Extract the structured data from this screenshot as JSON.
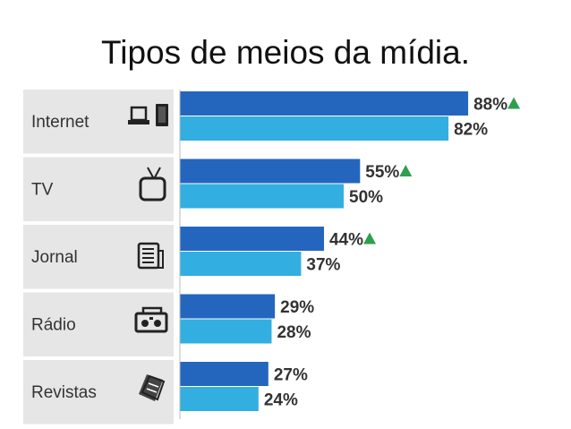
{
  "slide": {
    "title": "Tipos de meios da mídia."
  },
  "colors": {
    "series_dark": "#2466bd",
    "series_light": "#33aee0",
    "increase_marker": "#2e9e4f",
    "panel_bg": "#e6e6e6"
  },
  "chart_data": {
    "type": "bar",
    "orientation": "horizontal",
    "categories": [
      "Internet",
      "TV",
      "Jornal",
      "Rádio",
      "Revistas"
    ],
    "category_icons": [
      "laptop-tablet-icon",
      "tv-icon",
      "newspaper-icon",
      "radio-icon",
      "magazines-icon"
    ],
    "series": [
      {
        "values": [
          88,
          55,
          44,
          29,
          27
        ],
        "labels": [
          "88%",
          "55%",
          "44%",
          "29%",
          "27%"
        ],
        "color": "#2466bd"
      },
      {
        "values": [
          82,
          50,
          37,
          28,
          24
        ],
        "labels": [
          "82%",
          "50%",
          "37%",
          "28%",
          "24%"
        ],
        "color": "#33aee0"
      }
    ],
    "increase_markers": [
      true,
      true,
      true,
      false,
      false
    ],
    "value_unit": "%",
    "xlim": [
      0,
      100
    ],
    "grid": false,
    "legend": "none"
  }
}
